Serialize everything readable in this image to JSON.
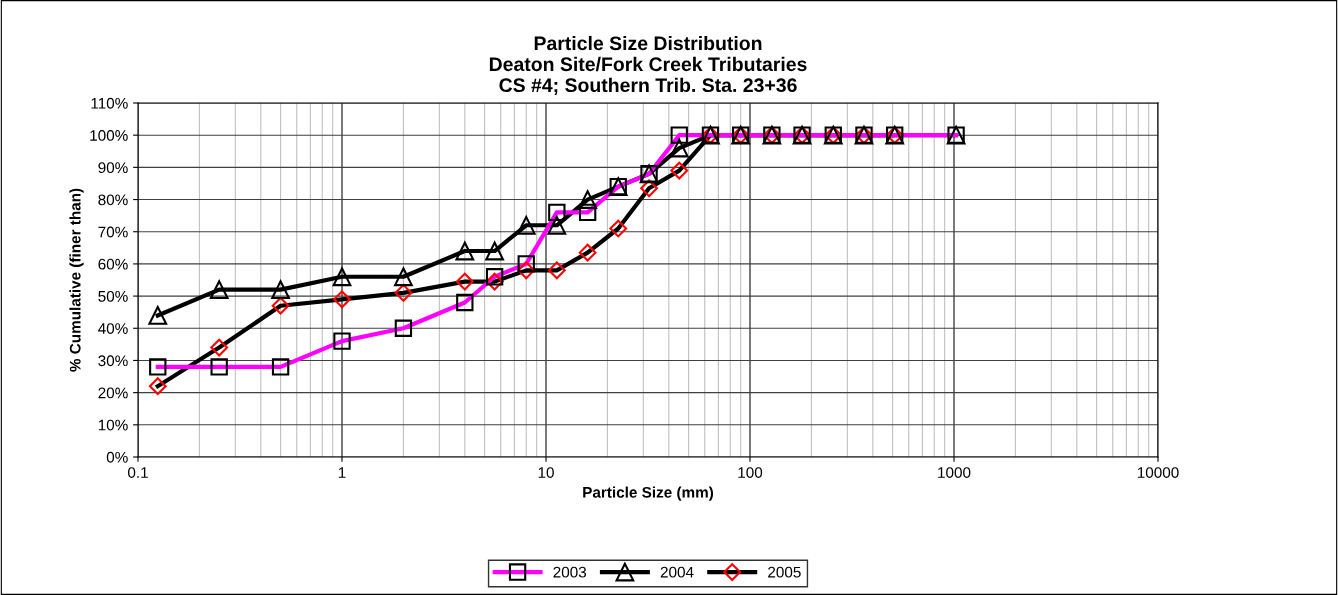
{
  "chart_data": {
    "type": "line",
    "title": "Particle Size Distribution\nDeaton Site/Fork Creek Tributaries\nCS #4; Southern Trib. Sta. 23+36",
    "xlabel": "Particle Size (mm)",
    "ylabel": "% Cumulative (finer than)",
    "log": "x",
    "grid": true,
    "legend": "bottom",
    "xlim": [
      0.1,
      10000
    ],
    "xticks": [
      0.1,
      1,
      10,
      100,
      1000,
      10000
    ],
    "ylim": [
      0,
      110
    ],
    "yticks": [
      {
        "value": 0,
        "label": "0%"
      },
      {
        "value": 10,
        "label": "10%"
      },
      {
        "value": 20,
        "label": "20%"
      },
      {
        "value": 30,
        "label": "30%"
      },
      {
        "value": 40,
        "label": "40%"
      },
      {
        "value": 50,
        "label": "50%"
      },
      {
        "value": 60,
        "label": "60%"
      },
      {
        "value": 70,
        "label": "70%"
      },
      {
        "value": 80,
        "label": "80%"
      },
      {
        "value": 90,
        "label": "90%"
      },
      {
        "value": 100,
        "label": "100%"
      },
      {
        "value": 110,
        "label": "110%"
      }
    ],
    "series": [
      {
        "name": "2003",
        "color": "#ff00ff",
        "colors": [
          "#000000",
          "#000000",
          "#000000",
          "#000000",
          "#000000",
          "#000000",
          "#000000",
          "#000000",
          "#000000",
          "#000000",
          "#000000",
          "#000000",
          "#000000",
          "#000000",
          "#000000",
          "#000000",
          "#000000",
          "#000000",
          "#000000",
          "#000000",
          "#000000"
        ],
        "marker": "square",
        "x": [
          0.125,
          0.25,
          0.5,
          1,
          2,
          4,
          5.6,
          8,
          11.3,
          16,
          22.6,
          32,
          45,
          64,
          90,
          128,
          180,
          256,
          362,
          512,
          1024
        ],
        "values": [
          28,
          28,
          28,
          36,
          40,
          48,
          56,
          60,
          76,
          76,
          84,
          88,
          100,
          100,
          100,
          100,
          100,
          100,
          100,
          100,
          100
        ]
      },
      {
        "name": "2004",
        "color": "#000000",
        "colors": [
          "#000000",
          "#000000",
          "#000000",
          "#000000",
          "#000000",
          "#000000",
          "#000000",
          "#000000",
          "#000000",
          "#000000",
          "#000000",
          "#000000",
          "#000000",
          "#000000",
          "#000000",
          "#000000",
          "#000000",
          "#000000",
          "#000000",
          "#000000",
          "#000000"
        ],
        "marker": "triangle",
        "x": [
          0.125,
          0.25,
          0.5,
          1,
          2,
          4,
          5.6,
          8,
          11.3,
          16,
          22.6,
          32,
          45,
          64,
          90,
          128,
          180,
          256,
          362,
          512,
          1024
        ],
        "values": [
          44,
          52,
          52,
          56,
          56,
          64,
          64,
          72,
          72,
          80,
          84,
          88,
          96,
          100,
          100,
          100,
          100,
          100,
          100,
          100,
          100
        ]
      },
      {
        "name": "2005",
        "color": "#000000",
        "colors": [
          "#ff0000",
          "#ff0000",
          "#ff0000",
          "#ff0000",
          "#ff0000",
          "#ff0000",
          "#ff0000",
          "#ff0000",
          "#ff0000",
          "#ff0000",
          "#ff0000",
          "#ff0000",
          "#ff0000",
          "#ff0000",
          "#ff0000",
          "#ff0000",
          "#ff0000",
          "#ff0000",
          "#ff0000",
          "#ff0000"
        ],
        "marker": "diamond",
        "x": [
          0.125,
          0.25,
          0.5,
          1,
          2,
          4,
          5.6,
          8,
          11.3,
          16,
          22.6,
          32,
          45,
          64,
          90,
          128,
          180,
          256,
          362,
          512
        ],
        "values": [
          22,
          34,
          47,
          49,
          51,
          54.5,
          54.5,
          58,
          58,
          63.5,
          71,
          83.5,
          89,
          100,
          100,
          100,
          100,
          100,
          100,
          100
        ]
      }
    ]
  }
}
